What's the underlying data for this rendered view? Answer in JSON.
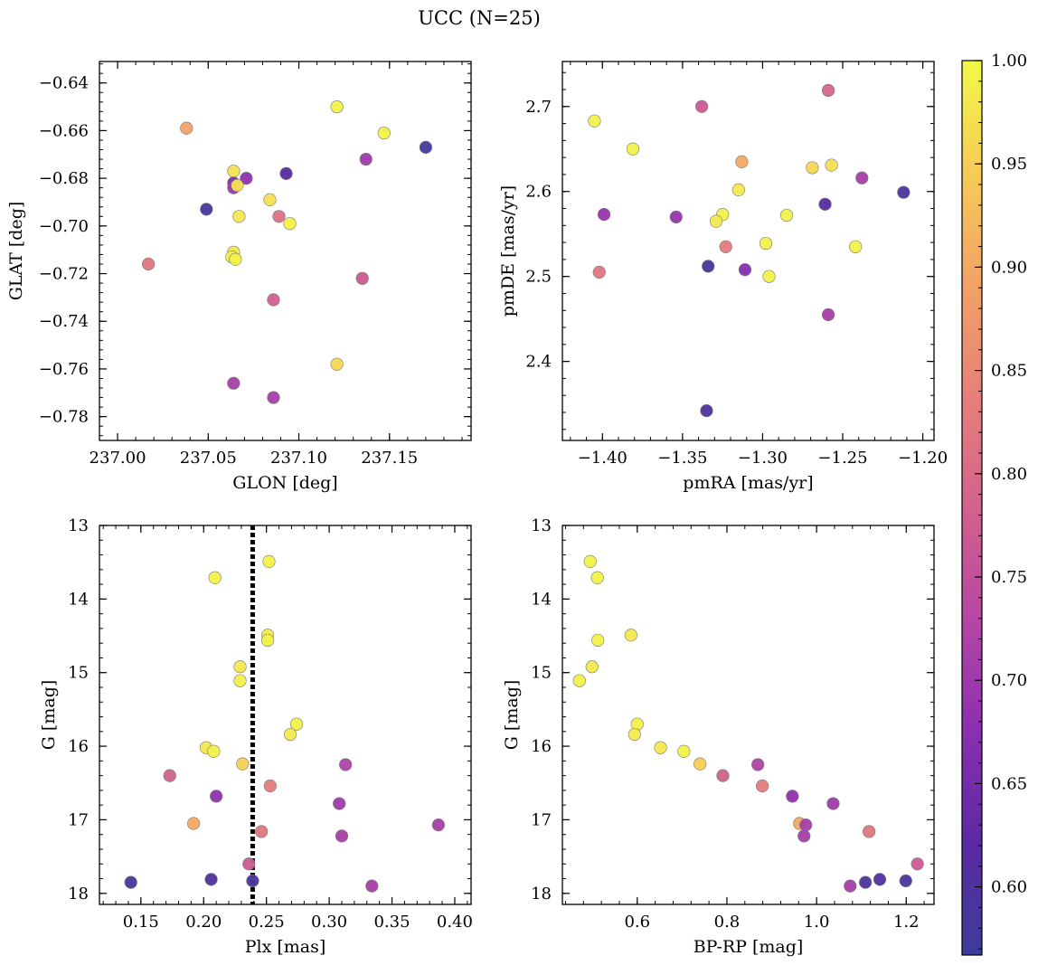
{
  "figure": {
    "title": "UCC (N=25)"
  },
  "colorbar": {
    "range": [
      0.567,
      1.0
    ],
    "ticks": [
      0.6,
      0.65,
      0.7,
      0.75,
      0.8,
      0.85,
      0.9,
      0.95,
      1.0
    ],
    "tick_labels": [
      "0.60",
      "0.65",
      "0.70",
      "0.75",
      "0.80",
      "0.85",
      "0.90",
      "0.95",
      "1.00"
    ],
    "colormap": "plasma"
  },
  "chart_data": [
    {
      "type": "scatter",
      "id": "glon-glat",
      "xlabel": "GLON [deg]",
      "ylabel": "GLAT [deg]",
      "xlim": [
        236.99,
        237.195
      ],
      "ylim": [
        -0.79,
        -0.631
      ],
      "y_inverted": false,
      "xticks": [
        237.0,
        237.05,
        237.1,
        237.15
      ],
      "xtick_labels": [
        "237.00",
        "237.05",
        "237.10",
        "237.15"
      ],
      "yticks": [
        -0.64,
        -0.66,
        -0.68,
        -0.7,
        -0.72,
        -0.74,
        -0.76,
        -0.78
      ],
      "ytick_labels": [
        "−0.64",
        "−0.66",
        "−0.68",
        "−0.70",
        "−0.72",
        "−0.74",
        "−0.76",
        "−0.78"
      ],
      "points": [
        {
          "x": 237.038,
          "y": -0.659,
          "c": 0.89
        },
        {
          "x": 237.121,
          "y": -0.65,
          "c": 0.99
        },
        {
          "x": 237.147,
          "y": -0.661,
          "c": 0.99
        },
        {
          "x": 237.17,
          "y": -0.667,
          "c": 0.58
        },
        {
          "x": 237.137,
          "y": -0.672,
          "c": 0.7
        },
        {
          "x": 237.093,
          "y": -0.678,
          "c": 0.61
        },
        {
          "x": 237.064,
          "y": -0.677,
          "c": 0.97
        },
        {
          "x": 237.071,
          "y": -0.68,
          "c": 0.68
        },
        {
          "x": 237.064,
          "y": -0.682,
          "c": 0.66
        },
        {
          "x": 237.064,
          "y": -0.684,
          "c": 0.7
        },
        {
          "x": 237.066,
          "y": -0.683,
          "c": 0.97
        },
        {
          "x": 237.049,
          "y": -0.693,
          "c": 0.59
        },
        {
          "x": 237.084,
          "y": -0.689,
          "c": 0.97
        },
        {
          "x": 237.067,
          "y": -0.696,
          "c": 0.98
        },
        {
          "x": 237.089,
          "y": -0.696,
          "c": 0.81
        },
        {
          "x": 237.095,
          "y": -0.699,
          "c": 0.99
        },
        {
          "x": 237.064,
          "y": -0.711,
          "c": 0.98
        },
        {
          "x": 237.063,
          "y": -0.713,
          "c": 0.99
        },
        {
          "x": 237.065,
          "y": -0.714,
          "c": 0.99
        },
        {
          "x": 237.017,
          "y": -0.716,
          "c": 0.82
        },
        {
          "x": 237.135,
          "y": -0.722,
          "c": 0.77
        },
        {
          "x": 237.086,
          "y": -0.731,
          "c": 0.78
        },
        {
          "x": 237.121,
          "y": -0.758,
          "c": 0.96
        },
        {
          "x": 237.064,
          "y": -0.766,
          "c": 0.71
        },
        {
          "x": 237.086,
          "y": -0.772,
          "c": 0.71
        }
      ]
    },
    {
      "type": "scatter",
      "id": "pmra-pmde",
      "xlabel": "pmRA [mas/yr]",
      "ylabel": "pmDE [mas/yr]",
      "xlim": [
        -1.425,
        -1.193
      ],
      "ylim": [
        2.307,
        2.753
      ],
      "y_inverted": false,
      "xticks": [
        -1.4,
        -1.35,
        -1.3,
        -1.25,
        -1.2
      ],
      "xtick_labels": [
        "−1.40",
        "−1.35",
        "−1.30",
        "−1.25",
        "−1.20"
      ],
      "yticks": [
        2.4,
        2.5,
        2.6,
        2.7
      ],
      "ytick_labels": [
        "2.4",
        "2.5",
        "2.6",
        "2.7"
      ],
      "points": [
        {
          "x": -1.405,
          "y": 2.683,
          "c": 0.99
        },
        {
          "x": -1.338,
          "y": 2.7,
          "c": 0.77
        },
        {
          "x": -1.259,
          "y": 2.719,
          "c": 0.79
        },
        {
          "x": -1.381,
          "y": 2.65,
          "c": 0.99
        },
        {
          "x": -1.313,
          "y": 2.635,
          "c": 0.9
        },
        {
          "x": -1.269,
          "y": 2.628,
          "c": 0.96
        },
        {
          "x": -1.257,
          "y": 2.631,
          "c": 0.97
        },
        {
          "x": -1.238,
          "y": 2.616,
          "c": 0.71
        },
        {
          "x": -1.212,
          "y": 2.599,
          "c": 0.59
        },
        {
          "x": -1.315,
          "y": 2.602,
          "c": 0.98
        },
        {
          "x": -1.261,
          "y": 2.585,
          "c": 0.61
        },
        {
          "x": -1.399,
          "y": 2.573,
          "c": 0.69
        },
        {
          "x": -1.354,
          "y": 2.57,
          "c": 0.69
        },
        {
          "x": -1.325,
          "y": 2.573,
          "c": 0.99
        },
        {
          "x": -1.329,
          "y": 2.565,
          "c": 0.98
        },
        {
          "x": -1.285,
          "y": 2.572,
          "c": 0.99
        },
        {
          "x": -1.323,
          "y": 2.535,
          "c": 0.83
        },
        {
          "x": -1.298,
          "y": 2.539,
          "c": 0.99
        },
        {
          "x": -1.242,
          "y": 2.535,
          "c": 0.99
        },
        {
          "x": -1.402,
          "y": 2.505,
          "c": 0.82
        },
        {
          "x": -1.334,
          "y": 2.512,
          "c": 0.59
        },
        {
          "x": -1.311,
          "y": 2.508,
          "c": 0.67
        },
        {
          "x": -1.296,
          "y": 2.5,
          "c": 0.99
        },
        {
          "x": -1.259,
          "y": 2.455,
          "c": 0.71
        },
        {
          "x": -1.335,
          "y": 2.342,
          "c": 0.6
        }
      ]
    },
    {
      "type": "scatter",
      "id": "plx-g",
      "xlabel": "Plx [mas]",
      "ylabel": "G [mag]",
      "xlim": [
        0.117,
        0.413
      ],
      "ylim": [
        18.15,
        13.0
      ],
      "y_inverted": true,
      "vline": {
        "x": 0.239,
        "style": "dotted"
      },
      "xticks": [
        0.15,
        0.2,
        0.25,
        0.3,
        0.35,
        0.4
      ],
      "xtick_labels": [
        "0.15",
        "0.20",
        "0.25",
        "0.30",
        "0.35",
        "0.40"
      ],
      "yticks": [
        13,
        14,
        15,
        16,
        17,
        18
      ],
      "ytick_labels": [
        "13",
        "14",
        "15",
        "16",
        "17",
        "18"
      ],
      "points": [
        {
          "x": 0.252,
          "y": 13.49,
          "c": 0.99
        },
        {
          "x": 0.209,
          "y": 13.71,
          "c": 0.99
        },
        {
          "x": 0.251,
          "y": 14.49,
          "c": 0.98
        },
        {
          "x": 0.251,
          "y": 14.56,
          "c": 0.99
        },
        {
          "x": 0.229,
          "y": 14.92,
          "c": 0.98
        },
        {
          "x": 0.229,
          "y": 15.11,
          "c": 0.99
        },
        {
          "x": 0.274,
          "y": 15.7,
          "c": 0.99
        },
        {
          "x": 0.269,
          "y": 15.84,
          "c": 0.98
        },
        {
          "x": 0.202,
          "y": 16.02,
          "c": 0.98
        },
        {
          "x": 0.208,
          "y": 16.07,
          "c": 0.99
        },
        {
          "x": 0.231,
          "y": 16.24,
          "c": 0.95
        },
        {
          "x": 0.313,
          "y": 16.25,
          "c": 0.72
        },
        {
          "x": 0.173,
          "y": 16.4,
          "c": 0.78
        },
        {
          "x": 0.253,
          "y": 16.54,
          "c": 0.83
        },
        {
          "x": 0.21,
          "y": 16.68,
          "c": 0.68
        },
        {
          "x": 0.308,
          "y": 16.78,
          "c": 0.7
        },
        {
          "x": 0.192,
          "y": 17.05,
          "c": 0.9
        },
        {
          "x": 0.387,
          "y": 17.07,
          "c": 0.71
        },
        {
          "x": 0.246,
          "y": 17.16,
          "c": 0.82
        },
        {
          "x": 0.31,
          "y": 17.22,
          "c": 0.71
        },
        {
          "x": 0.236,
          "y": 17.6,
          "c": 0.77
        },
        {
          "x": 0.206,
          "y": 17.81,
          "c": 0.6
        },
        {
          "x": 0.239,
          "y": 17.83,
          "c": 0.59
        },
        {
          "x": 0.142,
          "y": 17.85,
          "c": 0.59
        },
        {
          "x": 0.334,
          "y": 17.9,
          "c": 0.71
        }
      ]
    },
    {
      "type": "scatter",
      "id": "bprp-g",
      "xlabel": "BP-RP [mag]",
      "ylabel": "G [mag]",
      "xlim": [
        0.433,
        1.262
      ],
      "ylim": [
        18.15,
        13.0
      ],
      "y_inverted": true,
      "xticks": [
        0.6,
        0.8,
        1.0,
        1.2
      ],
      "xtick_labels": [
        "0.6",
        "0.8",
        "1.0",
        "1.2"
      ],
      "yticks": [
        13,
        14,
        15,
        16,
        17,
        18
      ],
      "ytick_labels": [
        "13",
        "14",
        "15",
        "16",
        "17",
        "18"
      ],
      "points": [
        {
          "x": 0.495,
          "y": 13.49,
          "c": 0.99
        },
        {
          "x": 0.511,
          "y": 13.71,
          "c": 0.99
        },
        {
          "x": 0.586,
          "y": 14.49,
          "c": 0.98
        },
        {
          "x": 0.512,
          "y": 14.56,
          "c": 0.99
        },
        {
          "x": 0.499,
          "y": 14.92,
          "c": 0.98
        },
        {
          "x": 0.471,
          "y": 15.11,
          "c": 0.99
        },
        {
          "x": 0.6,
          "y": 15.7,
          "c": 0.99
        },
        {
          "x": 0.594,
          "y": 15.84,
          "c": 0.98
        },
        {
          "x": 0.652,
          "y": 16.02,
          "c": 0.98
        },
        {
          "x": 0.704,
          "y": 16.07,
          "c": 0.99
        },
        {
          "x": 0.74,
          "y": 16.24,
          "c": 0.95
        },
        {
          "x": 0.869,
          "y": 16.25,
          "c": 0.72
        },
        {
          "x": 0.791,
          "y": 16.4,
          "c": 0.78
        },
        {
          "x": 0.879,
          "y": 16.54,
          "c": 0.83
        },
        {
          "x": 0.946,
          "y": 16.68,
          "c": 0.68
        },
        {
          "x": 1.037,
          "y": 16.78,
          "c": 0.7
        },
        {
          "x": 0.962,
          "y": 17.05,
          "c": 0.9
        },
        {
          "x": 0.976,
          "y": 17.07,
          "c": 0.71
        },
        {
          "x": 1.117,
          "y": 17.16,
          "c": 0.82
        },
        {
          "x": 0.972,
          "y": 17.22,
          "c": 0.71
        },
        {
          "x": 1.225,
          "y": 17.6,
          "c": 0.77
        },
        {
          "x": 1.141,
          "y": 17.81,
          "c": 0.6
        },
        {
          "x": 1.199,
          "y": 17.83,
          "c": 0.59
        },
        {
          "x": 1.109,
          "y": 17.85,
          "c": 0.59
        },
        {
          "x": 1.075,
          "y": 17.9,
          "c": 0.71
        }
      ]
    }
  ]
}
